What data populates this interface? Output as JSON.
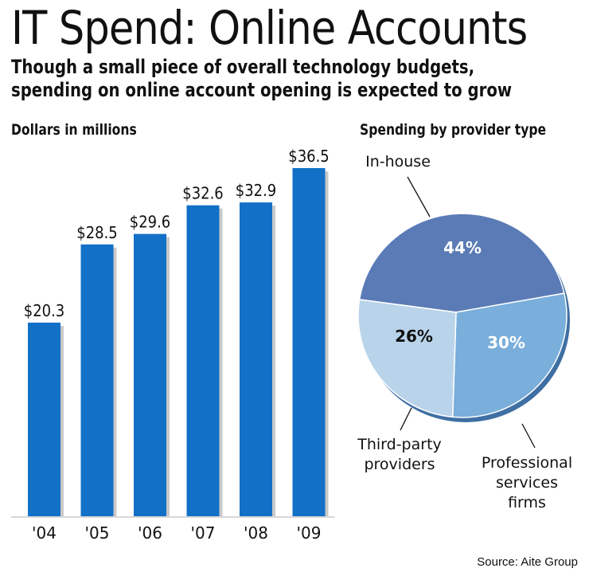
{
  "header": {
    "title": "IT Spend: Online Accounts",
    "subtitle_line1": "Though a small piece of overall technology budgets,",
    "subtitle_line2": "spending on online account opening is expected to grow"
  },
  "source": "Source: Aite Group",
  "colors": {
    "bar": "#1270c7",
    "pie_inhouse": "#5a7bb5",
    "pie_professional": "#7aaedb",
    "pie_thirdparty": "#b9d3ea"
  },
  "chart_data": [
    {
      "type": "bar",
      "title": "Dollars in millions",
      "categories": [
        "'04",
        "'05",
        "'06",
        "'07",
        "'08",
        "'09"
      ],
      "values": [
        20.3,
        28.5,
        29.6,
        32.6,
        32.9,
        36.5
      ],
      "value_labels": [
        "$20.3",
        "$28.5",
        "$29.6",
        "$32.6",
        "$32.9",
        "$36.5"
      ],
      "ylim": [
        0,
        36.5
      ]
    },
    {
      "type": "pie",
      "title": "Spending by provider type",
      "slices": [
        {
          "label": "In-house",
          "value": 44,
          "pct_label": "44%"
        },
        {
          "label": "Professional services firms",
          "label_lines": [
            "Professional",
            "services",
            "firms"
          ],
          "value": 30,
          "pct_label": "30%"
        },
        {
          "label": "Third-party providers",
          "label_lines": [
            "Third-party",
            "providers"
          ],
          "value": 26,
          "pct_label": "26%"
        }
      ]
    }
  ]
}
